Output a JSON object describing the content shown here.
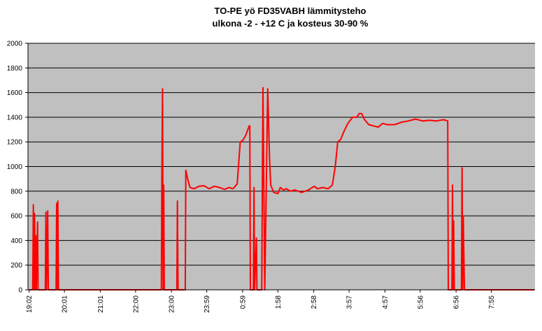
{
  "chart_data": {
    "type": "line",
    "title": [
      "TO-PE yö FD35VABH lämmitysteho",
      "ulkona -2 - +12 C ja kosteus 30-90 %"
    ],
    "x": [
      0,
      6,
      7,
      8,
      9,
      10,
      11,
      12,
      14,
      15,
      27,
      28,
      29,
      31,
      32,
      45,
      46,
      47,
      48,
      49,
      221,
      222,
      223,
      224,
      225,
      226,
      247,
      248,
      249,
      261,
      262,
      265,
      269,
      276,
      284,
      292,
      301,
      310,
      318,
      327,
      334,
      341,
      348,
      353,
      357,
      362,
      368,
      369,
      370,
      375,
      376,
      377,
      380,
      381,
      389,
      390,
      391,
      394,
      399,
      402,
      404,
      409,
      416,
      420,
      425,
      430,
      437,
      444,
      456,
      467,
      477,
      482,
      491,
      500,
      507,
      512,
      516,
      521,
      526,
      533,
      541,
      548,
      552,
      556,
      561,
      568,
      576,
      584,
      591,
      599,
      611,
      623,
      634,
      646,
      658,
      669,
      681,
      693,
      700,
      701,
      707,
      708,
      709,
      710,
      711,
      723,
      724,
      725,
      726,
      728,
      845
    ],
    "series": [
      {
        "name": "lämmitysteho",
        "color": "#ff0000",
        "values": [
          0,
          0,
          690,
          0,
          620,
          0,
          440,
          0,
          550,
          0,
          0,
          630,
          0,
          640,
          0,
          0,
          700,
          0,
          720,
          0,
          0,
          950,
          1630,
          0,
          850,
          0,
          0,
          720,
          0,
          0,
          970,
          900,
          830,
          820,
          840,
          845,
          820,
          840,
          830,
          815,
          830,
          820,
          860,
          1200,
          1210,
          1250,
          1330,
          1330,
          0,
          0,
          830,
          0,
          420,
          0,
          0,
          820,
          1640,
          0,
          1630,
          1070,
          850,
          790,
          780,
          830,
          810,
          820,
          800,
          810,
          790,
          810,
          840,
          820,
          830,
          820,
          850,
          1000,
          1200,
          1220,
          1280,
          1350,
          1400,
          1400,
          1430,
          1430,
          1380,
          1340,
          1330,
          1320,
          1350,
          1340,
          1340,
          1360,
          1370,
          1385,
          1370,
          1375,
          1370,
          1380,
          1370,
          0,
          0,
          850,
          0,
          560,
          0,
          0,
          990,
          0,
          600,
          0,
          0
        ]
      }
    ],
    "xlim": [
      -2,
      846
    ],
    "xticks": [
      {
        "value": 0,
        "label": "19:02"
      },
      {
        "value": 59,
        "label": "20:01"
      },
      {
        "value": 119,
        "label": "21:01"
      },
      {
        "value": 178,
        "label": "22:00"
      },
      {
        "value": 238,
        "label": "23:00"
      },
      {
        "value": 297,
        "label": "23:59"
      },
      {
        "value": 357,
        "label": "0:59"
      },
      {
        "value": 416,
        "label": "1:58"
      },
      {
        "value": 476,
        "label": "2:58"
      },
      {
        "value": 535,
        "label": "3:57"
      },
      {
        "value": 595,
        "label": "4:57"
      },
      {
        "value": 654,
        "label": "5:56"
      },
      {
        "value": 714,
        "label": "6:56"
      },
      {
        "value": 773,
        "label": "7:55"
      }
    ],
    "ylim": [
      0,
      2000
    ],
    "yticks": [
      0,
      200,
      400,
      600,
      800,
      1000,
      1200,
      1400,
      1600,
      1800,
      2000
    ],
    "grid": true
  }
}
